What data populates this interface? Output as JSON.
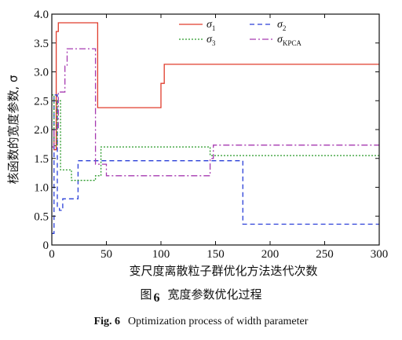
{
  "chart_data": {
    "type": "line",
    "ylabel": "核函数的宽度参数, σ",
    "xlabel": "变尺度离散粒子群优化方法迭代次数",
    "xlim": [
      0,
      300
    ],
    "ylim": [
      0,
      4.0
    ],
    "xticks": [
      "0",
      "50",
      "100",
      "150",
      "200",
      "250",
      "300"
    ],
    "yticks": [
      "0",
      "0.5",
      "1.0",
      "1.5",
      "2.0",
      "2.5",
      "3.0",
      "3.5",
      "4.0"
    ],
    "legend_position": "top-right",
    "grid": false,
    "series": [
      {
        "name": "σ",
        "sub": "1",
        "color": "#e03c2c",
        "dash": "",
        "x": [
          0,
          2,
          2,
          4,
          4,
          6,
          6,
          42,
          42,
          100,
          100,
          103,
          103,
          300
        ],
        "y": [
          2.0,
          2.0,
          1.65,
          1.65,
          3.7,
          3.7,
          3.85,
          3.85,
          2.38,
          2.38,
          2.8,
          2.8,
          3.13,
          3.13
        ]
      },
      {
        "name": "σ",
        "sub": "2",
        "color": "#2a3fd8",
        "dash": "6,4",
        "x": [
          0,
          2,
          2,
          5,
          5,
          7,
          7,
          10,
          10,
          24,
          24,
          175,
          175,
          300
        ],
        "y": [
          0.2,
          0.2,
          2.6,
          2.6,
          0.65,
          0.65,
          0.6,
          0.6,
          0.8,
          0.8,
          1.46,
          1.46,
          0.36,
          0.36
        ]
      },
      {
        "name": "σ",
        "sub": "3",
        "color": "#2a9a2a",
        "dash": "2,2",
        "x": [
          0,
          2,
          2,
          5,
          5,
          8,
          8,
          18,
          18,
          40,
          40,
          45,
          45,
          145,
          145,
          300
        ],
        "y": [
          2.6,
          2.6,
          1.72,
          1.72,
          2.5,
          2.5,
          1.3,
          1.3,
          1.12,
          1.12,
          1.2,
          1.2,
          1.7,
          1.7,
          1.55,
          1.55
        ]
      },
      {
        "name": "σ",
        "sub": "KPCA",
        "color": "#a63ab0",
        "dash": "8,3,2,3",
        "x": [
          0,
          2,
          2,
          6,
          6,
          12,
          12,
          14,
          14,
          40,
          40,
          50,
          50,
          145,
          145,
          148,
          148,
          300
        ],
        "y": [
          1.7,
          1.7,
          2.0,
          2.0,
          2.65,
          2.65,
          3.1,
          3.1,
          3.4,
          3.4,
          1.4,
          1.4,
          1.2,
          1.2,
          1.5,
          1.5,
          1.73,
          1.73
        ]
      }
    ]
  },
  "caption": {
    "fig_cn_prefix": "图",
    "fig_num": "6",
    "fig_cn_title": "宽度参数优化过程",
    "fig_en_prefix": "Fig. 6",
    "fig_en_title": "Optimization process of width parameter"
  }
}
